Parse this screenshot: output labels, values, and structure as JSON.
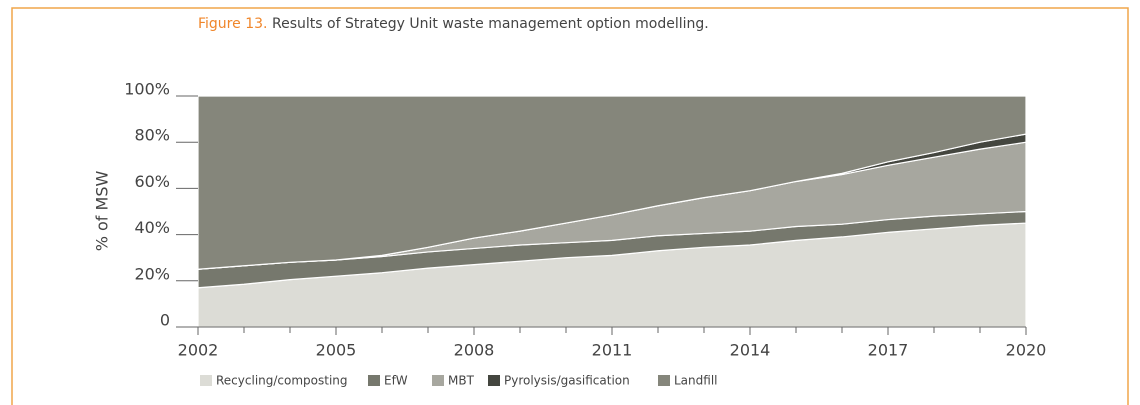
{
  "chart_data": {
    "type": "stacked_area",
    "title_label": "Figure 13.",
    "title": "Results of Strategy Unit waste management option modelling.",
    "ylabel": "% of MSW",
    "x": [
      2002,
      2003,
      2004,
      2005,
      2006,
      2007,
      2008,
      2009,
      2010,
      2011,
      2012,
      2013,
      2014,
      2015,
      2016,
      2017,
      2018,
      2019,
      2020
    ],
    "series": [
      {
        "name": "Recycling/composting",
        "color": "#dcdcd6",
        "values": [
          17,
          18.5,
          20.5,
          22,
          23.5,
          25.5,
          27,
          28.5,
          30,
          31,
          33,
          34.5,
          35.5,
          37.5,
          39,
          41,
          42.5,
          44,
          45
        ]
      },
      {
        "name": "EfW",
        "color": "#76786d",
        "values": [
          8,
          8,
          7.5,
          7,
          7,
          7,
          7,
          7,
          6.5,
          6.5,
          6.5,
          6,
          6,
          6,
          5.5,
          5.5,
          5.5,
          5,
          5
        ]
      },
      {
        "name": "MBT",
        "color": "#a7a79f",
        "values": [
          0,
          0,
          0,
          0,
          0.5,
          2,
          4.5,
          6,
          8.5,
          11,
          13,
          15.5,
          17.5,
          19.5,
          21.5,
          23.5,
          25.5,
          28,
          30
        ]
      },
      {
        "name": "Pyrolysis/gasification",
        "color": "#44463f",
        "values": [
          0,
          0,
          0,
          0,
          0,
          0,
          0,
          0,
          0,
          0,
          0,
          0,
          0,
          0,
          0.5,
          1.5,
          2,
          3,
          3.5
        ]
      },
      {
        "name": "Landfill",
        "color": "#85867b",
        "values": [
          75,
          73.5,
          72,
          71,
          69,
          65.5,
          61.5,
          58.5,
          55,
          51.5,
          47.5,
          44,
          41,
          37,
          33.5,
          28.5,
          24.5,
          20,
          16.5
        ]
      }
    ],
    "xlim": [
      2002,
      2020
    ],
    "xticks": [
      2002,
      2005,
      2008,
      2011,
      2014,
      2017,
      2020
    ],
    "ylim": [
      0,
      100
    ],
    "yticks": [
      0,
      {
        "value": 20,
        "label": "20%"
      },
      {
        "value": 40,
        "label": "40%"
      },
      {
        "value": 60,
        "label": "60%"
      },
      {
        "value": 80,
        "label": "80%"
      },
      {
        "value": 100,
        "label": "100%"
      }
    ],
    "legend": "bottom"
  }
}
